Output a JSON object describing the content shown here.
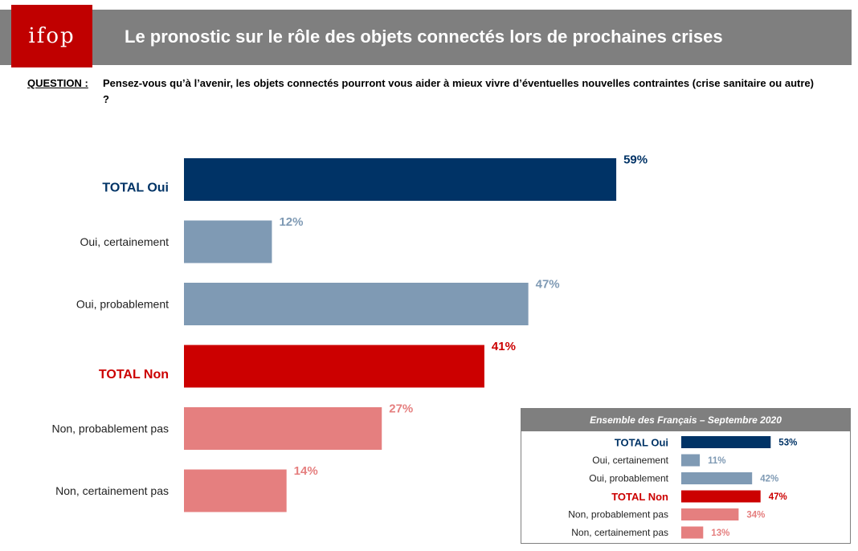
{
  "header": {
    "logo_text": "ifop",
    "title": "Le pronostic sur le rôle des objets connectés lors de prochaines crises"
  },
  "question": {
    "label": "QUESTION :",
    "text": "Pensez-vous qu’à l’avenir, les objets connectés pourront vous aider à mieux vivre d’éventuelles nouvelles contraintes (crise sanitaire ou autre) ?"
  },
  "colors": {
    "total_oui": "#003366",
    "oui": "#7f9ab4",
    "total_non": "#cc0000",
    "non": "#e57f7f"
  },
  "chart_data": [
    {
      "type": "bar",
      "orientation": "horizontal",
      "categories": [
        "TOTAL Oui",
        "Oui, certainement",
        "Oui, probablement",
        "TOTAL Non",
        "Non, probablement pas",
        "Non, certainement pas"
      ],
      "values": [
        59,
        12,
        47,
        41,
        27,
        14
      ],
      "value_labels": [
        "59%",
        "12%",
        "47%",
        "41%",
        "27%",
        "14%"
      ],
      "groups": [
        "total_oui",
        "oui",
        "oui",
        "total_non",
        "non",
        "non"
      ],
      "xlim": [
        0,
        100
      ]
    },
    {
      "type": "bar",
      "orientation": "horizontal",
      "title": "Ensemble des Français – Septembre 2020",
      "categories": [
        "TOTAL Oui",
        "Oui, certainement",
        "Oui, probablement",
        "TOTAL Non",
        "Non, probablement pas",
        "Non, certainement pas"
      ],
      "values": [
        53,
        11,
        42,
        47,
        34,
        13
      ],
      "value_labels": [
        "53%",
        "11%",
        "42%",
        "47%",
        "34%",
        "13%"
      ],
      "groups": [
        "total_oui",
        "oui",
        "oui",
        "total_non",
        "non",
        "non"
      ],
      "xlim": [
        0,
        100
      ]
    }
  ]
}
